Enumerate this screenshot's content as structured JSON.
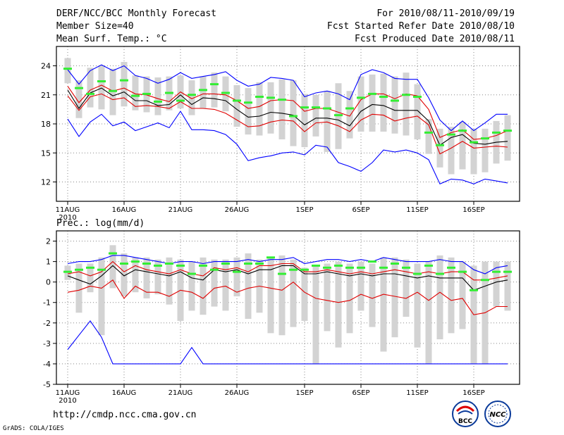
{
  "header": {
    "title": "DERF/NCC/BCC Monthly Forecast",
    "member_size": "Member Size=40",
    "variable": "Mean Surf. Temp.: °C",
    "forecast_range": "For 2010/08/11-2010/09/19",
    "started": "Fcst Started Refer Date 2010/08/10",
    "produced": "Fcst Produced Date 2010/08/11"
  },
  "footer": {
    "url": "http://cmdp.ncc.cma.gov.cn",
    "credit": "GrADS: COLA/IGES",
    "logo_bcc": "BCC",
    "logo_ncc": "NCC"
  },
  "colors": {
    "ensemble_max": "#0000ff",
    "ensemble_min": "#0000ff",
    "ensemble_mean": "#000000",
    "spread": "#e00000",
    "median": "#33ee33",
    "box": "#d3d3d3"
  },
  "chart_data": [
    {
      "type": "line",
      "title": "Mean Surf. Temp.: °C",
      "xlabel": "",
      "ylabel": "°C",
      "ylim": [
        10,
        26
      ],
      "yticks": [
        12,
        15,
        18,
        21,
        24
      ],
      "xticks": [
        {
          "day": 0,
          "label": "11AUG",
          "sub": "2010"
        },
        {
          "day": 5,
          "label": "16AUG"
        },
        {
          "day": 10,
          "label": "21AUG"
        },
        {
          "day": 15,
          "label": "26AUG"
        },
        {
          "day": 21,
          "label": "1SEP"
        },
        {
          "day": 26,
          "label": "6SEP"
        },
        {
          "day": 31,
          "label": "11SEP"
        },
        {
          "day": 36,
          "label": "16SEP"
        }
      ],
      "days": 40,
      "series": [
        {
          "name": "max",
          "values": [
            18.5,
            16.7,
            18.2,
            19,
            17.8,
            18.2,
            17.3,
            17.7,
            18.1,
            17.6,
            19.3,
            17.4,
            17.4,
            17.3,
            16.9,
            15.9,
            14.2,
            14.5,
            14.7,
            15,
            15.1,
            14.8,
            15.8,
            15.6,
            14,
            13.6,
            13.1,
            14,
            15.3,
            15.1,
            15.3,
            15,
            14.3,
            11.8,
            12.3,
            12.2,
            11.8,
            12.3,
            12.1,
            11.9
          ]
        },
        {
          "name": "min",
          "values": [
            23.6,
            22.1,
            23.5,
            24.1,
            23.5,
            24,
            23,
            22.7,
            22.2,
            22.6,
            23.3,
            22.7,
            22.9,
            23.1,
            23.4,
            22.5,
            21.9,
            22.1,
            22.8,
            22.7,
            22.5,
            20.8,
            21.2,
            21.4,
            21.1,
            20.5,
            23.1,
            23.6,
            23.3,
            22.7,
            22.6,
            22.6,
            20.7,
            18.4,
            17.3,
            18.3,
            17.3,
            18.1,
            19,
            19
          ]
        },
        {
          "name": "upper_spread",
          "values": [
            21.9,
            20.2,
            21.5,
            22,
            21.4,
            21.7,
            21.1,
            21,
            20.6,
            20.3,
            21.3,
            20.6,
            21.1,
            21.1,
            21,
            20.4,
            19.6,
            19.8,
            20.4,
            20.5,
            20.4,
            19.3,
            19.6,
            19.6,
            19.2,
            18.8,
            20.5,
            21.1,
            21.1,
            20.6,
            21.1,
            20.9,
            19.5,
            16.6,
            17.1,
            17.4,
            16.4,
            16.5,
            16.8,
            17.3
          ]
        },
        {
          "name": "mean",
          "values": [
            21.5,
            19.6,
            21.2,
            21.7,
            20.9,
            21.3,
            20.4,
            20.4,
            19.9,
            20,
            21,
            20,
            20.7,
            20.6,
            20.4,
            19.5,
            18.7,
            18.8,
            19.2,
            19.1,
            18.9,
            17.9,
            18.6,
            18.6,
            18.4,
            17.8,
            19.3,
            20,
            19.9,
            19.4,
            19.4,
            19.4,
            18.3,
            15.8,
            16.6,
            16.9,
            16,
            15.9,
            16.1,
            16.2
          ]
        },
        {
          "name": "lower_spread",
          "values": [
            20.9,
            19.4,
            20.8,
            21.1,
            20.5,
            20.7,
            19.8,
            19.9,
            19.8,
            19.6,
            20.3,
            19.6,
            19.6,
            19.5,
            19.1,
            18.4,
            17.7,
            17.8,
            18.2,
            18.4,
            18.3,
            17.2,
            18.1,
            18.2,
            17.8,
            17.2,
            18.4,
            19,
            18.9,
            18.3,
            18.6,
            18.8,
            17.9,
            14.9,
            15.5,
            16.2,
            15.5,
            15.6,
            15.7,
            15.6
          ]
        },
        {
          "name": "median",
          "values": [
            23.7,
            21.7,
            21.1,
            22.4,
            21.4,
            22.5,
            20.9,
            21.1,
            20.3,
            21.2,
            20.4,
            21,
            21.5,
            22.1,
            21.2,
            20.4,
            20.2,
            20.8,
            20.7,
            20.5,
            18.8,
            19.7,
            19.7,
            19.6,
            18.9,
            19.6,
            20.7,
            21.1,
            20.8,
            20.4,
            21,
            20.8,
            17.1,
            15.8,
            16.9,
            17.3,
            16.1,
            16.5,
            17.1,
            17.3
          ]
        },
        {
          "name": "box_low",
          "values": [
            22.2,
            18.6,
            19.7,
            19.5,
            18.9,
            19.8,
            19.4,
            19.2,
            18.9,
            19.4,
            19.6,
            18.9,
            19.6,
            19.7,
            19.3,
            17.7,
            16.9,
            16.8,
            17,
            16.4,
            15.7,
            15.6,
            16.7,
            15.1,
            15.4,
            16.5,
            17.2,
            17.2,
            17.2,
            17,
            16.8,
            16.4,
            14.9,
            13.5,
            12.8,
            13.3,
            12.8,
            13,
            13.9,
            14.2
          ]
        },
        {
          "name": "box_high",
          "values": [
            24.8,
            22.5,
            23.8,
            24,
            23.7,
            24.4,
            23,
            22.9,
            22.8,
            22.9,
            23,
            22.5,
            22.9,
            23.3,
            22.9,
            22,
            21.7,
            22.3,
            22.3,
            22.6,
            22.5,
            21.1,
            21,
            21.4,
            22.2,
            21.4,
            22.9,
            23.1,
            23.2,
            22.9,
            23.3,
            22.1,
            18.5,
            17.5,
            17.7,
            18.2,
            17.5,
            17.5,
            18.3,
            18.9
          ]
        }
      ]
    },
    {
      "type": "line",
      "title": "Prec.: log(mm/d)",
      "xlabel": "",
      "ylabel": "log(mm/d)",
      "ylim": [
        -5,
        2.5
      ],
      "yticks": [
        -5,
        -4,
        -3,
        -2,
        -1,
        0,
        1,
        2
      ],
      "xticks": [
        {
          "day": 0,
          "label": "11AUG",
          "sub": "2010"
        },
        {
          "day": 5,
          "label": "16AUG"
        },
        {
          "day": 10,
          "label": "21AUG"
        },
        {
          "day": 15,
          "label": "26AUG"
        },
        {
          "day": 21,
          "label": "1SEP"
        },
        {
          "day": 26,
          "label": "6SEP"
        },
        {
          "day": 31,
          "label": "11SEP"
        },
        {
          "day": 36,
          "label": "16SEP"
        }
      ],
      "days": 40,
      "series": [
        {
          "name": "max",
          "values": [
            0.9,
            1,
            1,
            1.1,
            1.3,
            1.3,
            1.2,
            1.1,
            1,
            0.9,
            1,
            1,
            0.9,
            1,
            1,
            1,
            1.1,
            1,
            1.1,
            1.1,
            1.2,
            0.9,
            1,
            1.1,
            1.1,
            1,
            1.1,
            1,
            1.2,
            1.1,
            1,
            1,
            1,
            1.1,
            1,
            1,
            0.6,
            0.4,
            0.7,
            0.8
          ]
        },
        {
          "name": "min",
          "values": [
            -3.3,
            -2.6,
            -1.9,
            -2.7,
            -4,
            -4,
            -4,
            -4,
            -4,
            -4,
            -4,
            -3.2,
            -4,
            -4,
            -4,
            -4,
            -4,
            -4,
            -4,
            -4,
            -4,
            -4,
            -4,
            -4,
            -4,
            -4,
            -4,
            -4,
            -4,
            -4,
            -4,
            -4,
            -4,
            -4,
            -4,
            -4,
            -4,
            -4,
            -4,
            -4
          ]
        },
        {
          "name": "upper_spread",
          "values": [
            0.4,
            0.5,
            0.3,
            0.5,
            1,
            0.5,
            0.8,
            0.6,
            0.5,
            0.4,
            0.6,
            0.4,
            0.3,
            0.7,
            0.6,
            0.7,
            0.5,
            0.8,
            0.8,
            0.9,
            0.9,
            0.5,
            0.5,
            0.6,
            0.5,
            0.4,
            0.5,
            0.4,
            0.5,
            0.6,
            0.5,
            0.4,
            0.5,
            0.4,
            0.5,
            0.5,
            0.1,
            0.1,
            0.2,
            0.3
          ]
        },
        {
          "name": "mean",
          "values": [
            0.3,
            0.1,
            -0.1,
            0.3,
            0.8,
            0.3,
            0.6,
            0.5,
            0.4,
            0.3,
            0.5,
            0.2,
            0.1,
            0.6,
            0.5,
            0.6,
            0.4,
            0.6,
            0.6,
            0.8,
            0.8,
            0.4,
            0.4,
            0.5,
            0.4,
            0.3,
            0.4,
            0.3,
            0.4,
            0.4,
            0.3,
            0.2,
            0.3,
            0.2,
            0.2,
            0.2,
            -0.4,
            -0.2,
            0,
            0.1
          ]
        },
        {
          "name": "lower_spread",
          "values": [
            -0.5,
            -0.4,
            -0.2,
            -0.3,
            0.1,
            -0.8,
            -0.2,
            -0.5,
            -0.5,
            -0.7,
            -0.4,
            -0.5,
            -0.8,
            -0.3,
            -0.2,
            -0.5,
            -0.3,
            -0.2,
            -0.3,
            -0.4,
            0,
            -0.5,
            -0.8,
            -0.9,
            -1,
            -0.9,
            -0.6,
            -0.8,
            -0.6,
            -0.7,
            -0.8,
            -0.5,
            -0.9,
            -0.5,
            -0.9,
            -0.8,
            -1.6,
            -1.5,
            -1.2,
            -1.2
          ]
        },
        {
          "name": "median",
          "values": [
            0.5,
            0.6,
            0.7,
            0.6,
            1.4,
            0.9,
            1,
            0.9,
            0.8,
            0.9,
            0.8,
            0.4,
            0.8,
            0.6,
            0.9,
            0.5,
            0.9,
            0.9,
            1.2,
            0.4,
            0.6,
            0.6,
            0.8,
            0.7,
            0.8,
            0.7,
            0.7,
            1,
            0.7,
            0.9,
            0.7,
            0.4,
            0.8,
            0.4,
            0.7,
            0.5,
            -0.4,
            0.1,
            0.5,
            0.5
          ]
        },
        {
          "name": "box_low",
          "values": [
            0.1,
            -1.5,
            -0.5,
            -2.6,
            -0.3,
            -0.7,
            -0.5,
            -0.8,
            -0.6,
            -1.1,
            -1.9,
            -1.4,
            -1.6,
            -1.2,
            -1.4,
            -0.7,
            -1.8,
            -1.5,
            -2.5,
            -2.6,
            -2.2,
            -1.9,
            -4,
            -2.4,
            -3.2,
            -2.5,
            -1.4,
            -2.2,
            -3.4,
            -2.7,
            -1.7,
            -3.2,
            -4,
            -2.8,
            -2.5,
            -2.3,
            -4,
            -4,
            -1.2,
            -1.4
          ]
        },
        {
          "name": "box_high",
          "values": [
            0.8,
            0.9,
            0.9,
            1.2,
            1.8,
            1.4,
            1.2,
            1.2,
            1.1,
            1.2,
            1.1,
            1,
            1.2,
            1.1,
            1.1,
            1.2,
            1.4,
            1.1,
            1.2,
            1.3,
            1.1,
            0.7,
            0.8,
            0.9,
            1,
            0.9,
            1,
            0.9,
            1.2,
            1.2,
            1.1,
            0.9,
            1,
            1.3,
            1.2,
            1,
            0.8,
            1,
            1,
            1
          ]
        }
      ]
    }
  ]
}
